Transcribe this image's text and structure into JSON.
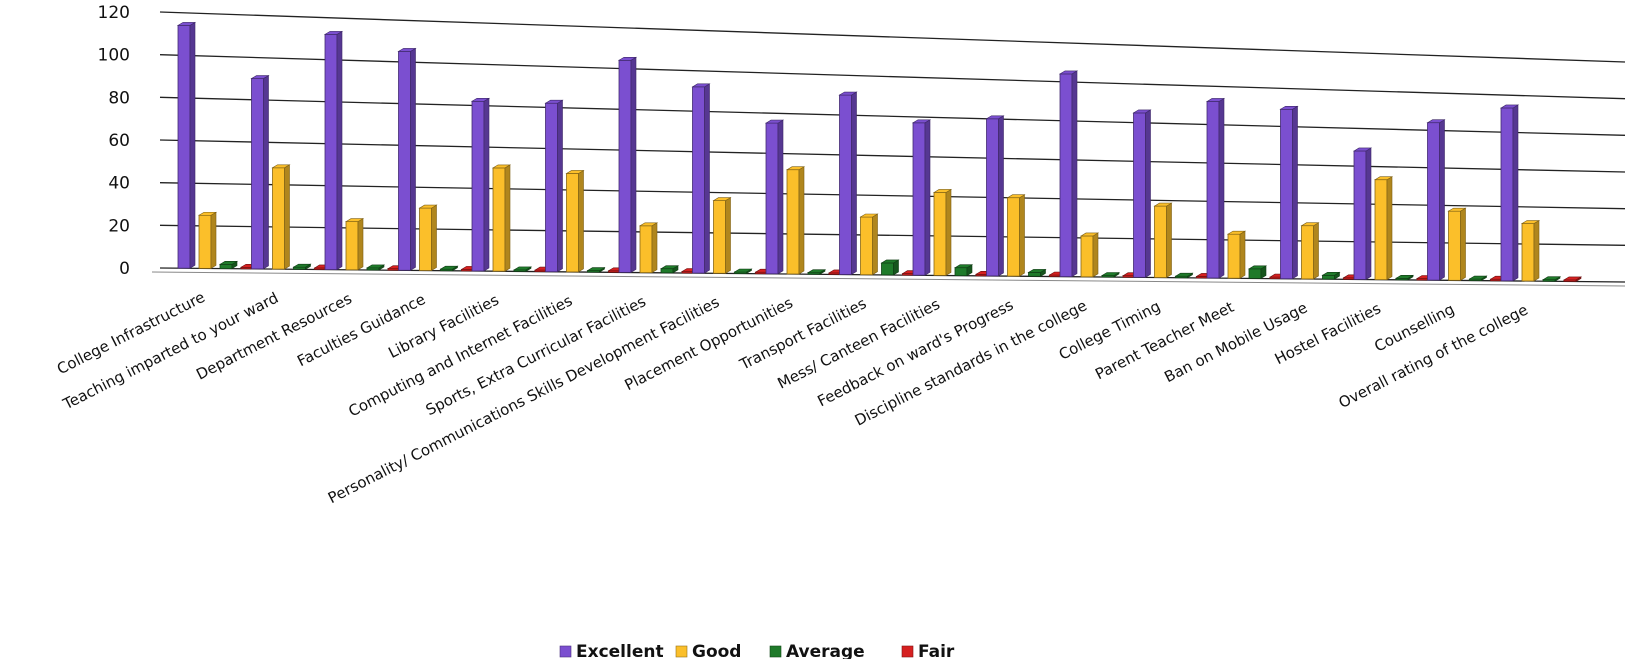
{
  "chart_data": {
    "type": "bar",
    "title": "",
    "xlabel": "",
    "ylabel": "",
    "ylim": [
      0,
      120
    ],
    "yticks": [
      0,
      20,
      40,
      60,
      80,
      100,
      120
    ],
    "grid": true,
    "legend_position": "bottom",
    "categories": [
      "College Infrastructure",
      "Teaching imparted to your ward",
      "Department Resources",
      "Faculties Guidance",
      "Library Facilities",
      "Computing and Internet Facilities",
      "Sports, Extra Curricular Facilities",
      "Personality/ Communications Skills Development Facilities",
      "Placement Opportunities",
      "Transport Facilities",
      "Mess/ Canteen Facilities",
      "Feedback on ward's Progress",
      "Discipline standards in the college",
      "College Timing",
      "Parent Teacher Meet",
      "Ban on Mobile Usage",
      "Hostel Facilities",
      "Counselling",
      "Overall rating of the college"
    ],
    "series": [
      {
        "name": "Excellent",
        "color": "#7b4fd0",
        "values": [
          114,
          90,
          112,
          105,
          82,
          82,
          104,
          92,
          75,
          90,
          77,
          80,
          104,
          85,
          92,
          89,
          68,
          84,
          93
        ]
      },
      {
        "name": "Good",
        "color": "#fbbf2a",
        "values": [
          25,
          48,
          23,
          30,
          50,
          48,
          23,
          36,
          52,
          29,
          42,
          40,
          21,
          37,
          23,
          28,
          53,
          37,
          31
        ]
      },
      {
        "name": "Average",
        "color": "#1f7a2a",
        "values": [
          2,
          1,
          1,
          0,
          0,
          0,
          2,
          0,
          0,
          6,
          4,
          2,
          0,
          0,
          5,
          2,
          0,
          0,
          0
        ]
      },
      {
        "name": "Fair",
        "color": "#d62020",
        "values": [
          0,
          0,
          0,
          0,
          0,
          0,
          0,
          0,
          0,
          0,
          0,
          0,
          0,
          0,
          0,
          0,
          0,
          0,
          0
        ]
      }
    ]
  }
}
